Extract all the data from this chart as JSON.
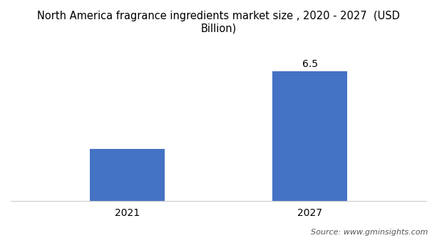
{
  "categories": [
    "2021",
    "2027"
  ],
  "values": [
    2.6,
    6.5
  ],
  "bar_color": "#4472C4",
  "title": "North America fragrance ingredients market size , 2020 - 2027  (USD\nBillion)",
  "source_text": "Source: www.gminsights.com",
  "bar_label_2027": "6.5",
  "ylim": [
    0,
    8
  ],
  "bar_width": 0.18,
  "x_positions": [
    0.28,
    0.72
  ],
  "xlim": [
    0,
    1
  ],
  "background_color": "#ffffff",
  "title_fontsize": 10.5,
  "tick_fontsize": 10,
  "label_fontsize": 10,
  "source_fontsize": 8
}
